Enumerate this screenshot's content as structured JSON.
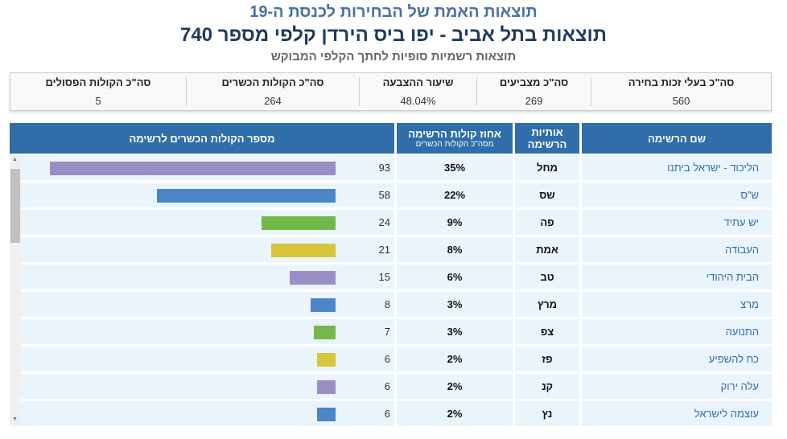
{
  "title1": "תוצאות האמת של הבחירות לכנסת ה-19",
  "title2": "תוצאות בתל אביב - יפו ביס הירדן קלפי מספר 740",
  "title3": "תוצאות רשמיות סופיות לחתך הקלפי המבוקש",
  "summary": [
    {
      "label": "סה\"כ בעלי זכות בחירה",
      "value": "560"
    },
    {
      "label": "סה\"כ מצביעים",
      "value": "269"
    },
    {
      "label": "שיעור ההצבעה",
      "value": "48.04%"
    },
    {
      "label": "סה\"כ הקולות הכשרים",
      "value": "264"
    },
    {
      "label": "סה\"כ הקולות הפסולים",
      "value": "5"
    }
  ],
  "headers": {
    "name": "שם הרשימה",
    "letters": "אותיות הרשימה",
    "pct": "אחוז קולות הרשימה",
    "pct_sub": "מסה\"כ הקולות הכשרים",
    "votes": "מספר הקולות הכשרים לרשימה"
  },
  "colors": {
    "purple": "#9b8ec4",
    "blue": "#4a86c8",
    "green": "#72b94a",
    "yellow": "#d8c63a"
  },
  "rows": [
    {
      "name": "הליכוד - ישראל ביתנו",
      "letters": "מחל",
      "pct": "35%",
      "votes": 93,
      "color": "#9b8ec4"
    },
    {
      "name": "ש\"ס",
      "letters": "שס",
      "pct": "22%",
      "votes": 58,
      "color": "#4a86c8"
    },
    {
      "name": "יש עתיד",
      "letters": "פה",
      "pct": "9%",
      "votes": 24,
      "color": "#72b94a"
    },
    {
      "name": "העבודה",
      "letters": "אמת",
      "pct": "8%",
      "votes": 21,
      "color": "#d8c63a"
    },
    {
      "name": "הבית היהודי",
      "letters": "טב",
      "pct": "6%",
      "votes": 15,
      "color": "#9b8ec4"
    },
    {
      "name": "מרצ",
      "letters": "מרץ",
      "pct": "3%",
      "votes": 8,
      "color": "#4a86c8"
    },
    {
      "name": "התנועה",
      "letters": "צפ",
      "pct": "3%",
      "votes": 7,
      "color": "#72b94a"
    },
    {
      "name": "כח להשפיע",
      "letters": "פז",
      "pct": "2%",
      "votes": 6,
      "color": "#d8c63a"
    },
    {
      "name": "עלה ירוק",
      "letters": "קנ",
      "pct": "2%",
      "votes": 6,
      "color": "#9b8ec4"
    },
    {
      "name": "עוצמה לישראל",
      "letters": "נץ",
      "pct": "2%",
      "votes": 6,
      "color": "#4a86c8"
    }
  ]
}
